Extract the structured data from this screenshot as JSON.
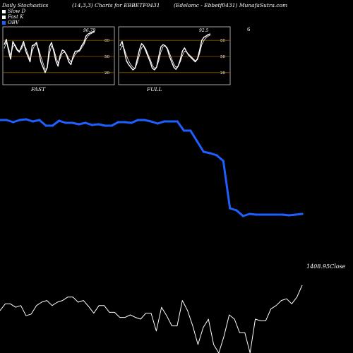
{
  "header": {
    "left": "Daily Stochastics",
    "center": "(14,3,3) Charts for EBBETF0431",
    "right": "(Edelamc - Ebbetf0431) MunafaSutra.com"
  },
  "legend": [
    {
      "label": "Slow D",
      "color": "#ffffff"
    },
    {
      "label": "Fast K",
      "color": "#ffffff"
    },
    {
      "label": "OBV",
      "color": "#1f5fff"
    }
  ],
  "colors": {
    "obv": "#1f5fff",
    "price": "#ffffff",
    "grid": "#8a5a00",
    "panel_border": "#cccccc"
  },
  "chart_data": [
    {
      "type": "line",
      "panel": "FAST",
      "label": "FAST",
      "end_label": "96.79",
      "ylim": [
        0,
        100
      ],
      "grid_levels": [
        20,
        50,
        80
      ],
      "tick_labels": [
        "80",
        "50",
        "20"
      ],
      "series": [
        {
          "values": [
            72,
            82,
            60,
            45,
            78,
            70,
            62,
            58,
            68,
            78,
            60,
            50,
            40,
            70,
            72,
            76,
            60,
            40,
            30,
            20,
            30,
            68,
            76,
            60,
            42,
            32,
            52,
            62,
            60,
            52,
            40,
            35,
            50,
            60,
            60,
            62,
            70,
            76,
            88,
            92,
            94,
            96,
            97
          ]
        },
        {
          "values": [
            65,
            76,
            66,
            52,
            68,
            72,
            64,
            60,
            64,
            72,
            66,
            55,
            44,
            60,
            70,
            72,
            64,
            50,
            38,
            26,
            28,
            55,
            70,
            64,
            50,
            38,
            46,
            56,
            58,
            54,
            46,
            40,
            46,
            54,
            58,
            60,
            66,
            72,
            82,
            88,
            92,
            94,
            95
          ]
        }
      ]
    },
    {
      "type": "line",
      "panel": "FULL",
      "label": "FULL",
      "end_label": "92.5",
      "ylim": [
        0,
        100
      ],
      "grid_levels": [
        20,
        50,
        80
      ],
      "tick_labels": [
        "80",
        "50",
        "20"
      ],
      "series": [
        {
          "values": [
            70,
            78,
            60,
            42,
            35,
            30,
            25,
            28,
            45,
            62,
            74,
            70,
            60,
            50,
            40,
            28,
            25,
            30,
            50,
            68,
            72,
            70,
            64,
            50,
            40,
            30,
            26,
            32,
            44,
            60,
            66,
            58,
            52,
            48,
            44,
            40,
            46,
            62,
            80,
            86,
            88,
            91,
            92
          ]
        },
        {
          "values": [
            62,
            70,
            64,
            52,
            42,
            35,
            30,
            28,
            38,
            52,
            66,
            70,
            64,
            54,
            45,
            34,
            28,
            30,
            42,
            58,
            68,
            70,
            66,
            56,
            46,
            36,
            30,
            32,
            40,
            52,
            60,
            58,
            54,
            50,
            46,
            42,
            44,
            56,
            72,
            80,
            85,
            88,
            90
          ]
        }
      ]
    },
    {
      "type": "line",
      "panel": "OBV",
      "series": [
        {
          "name": "OBV",
          "values": [
            170,
            170,
            167,
            170,
            171,
            168,
            170,
            162,
            162,
            169,
            166,
            166,
            164,
            166,
            163,
            164,
            162,
            162,
            167,
            167,
            166,
            170,
            170,
            168,
            165,
            168,
            168,
            168,
            155,
            155,
            140,
            125,
            123,
            120,
            112,
            45,
            42,
            34,
            37,
            36,
            36,
            36,
            36,
            36,
            35,
            36,
            37
          ]
        }
      ]
    },
    {
      "type": "line",
      "panel": "PRICE",
      "end_label": "1408.95",
      "unit_label": "Close",
      "series": [
        {
          "values": [
            0,
            8,
            8,
            4,
            6,
            -6,
            -4,
            6,
            10,
            12,
            6,
            10,
            12,
            16,
            16,
            10,
            12,
            5,
            -3,
            6,
            6,
            -2,
            -2,
            -8,
            -8,
            -5,
            -8,
            -10,
            -3,
            -3,
            -24,
            4,
            -6,
            -18,
            -18,
            12,
            0,
            -18,
            -40,
            -20,
            -10,
            -40,
            -50,
            -30,
            -5,
            -10,
            -26,
            -26,
            -50,
            -10,
            -12,
            -12,
            2,
            6,
            12,
            14,
            8,
            16,
            30
          ]
        }
      ]
    }
  ]
}
